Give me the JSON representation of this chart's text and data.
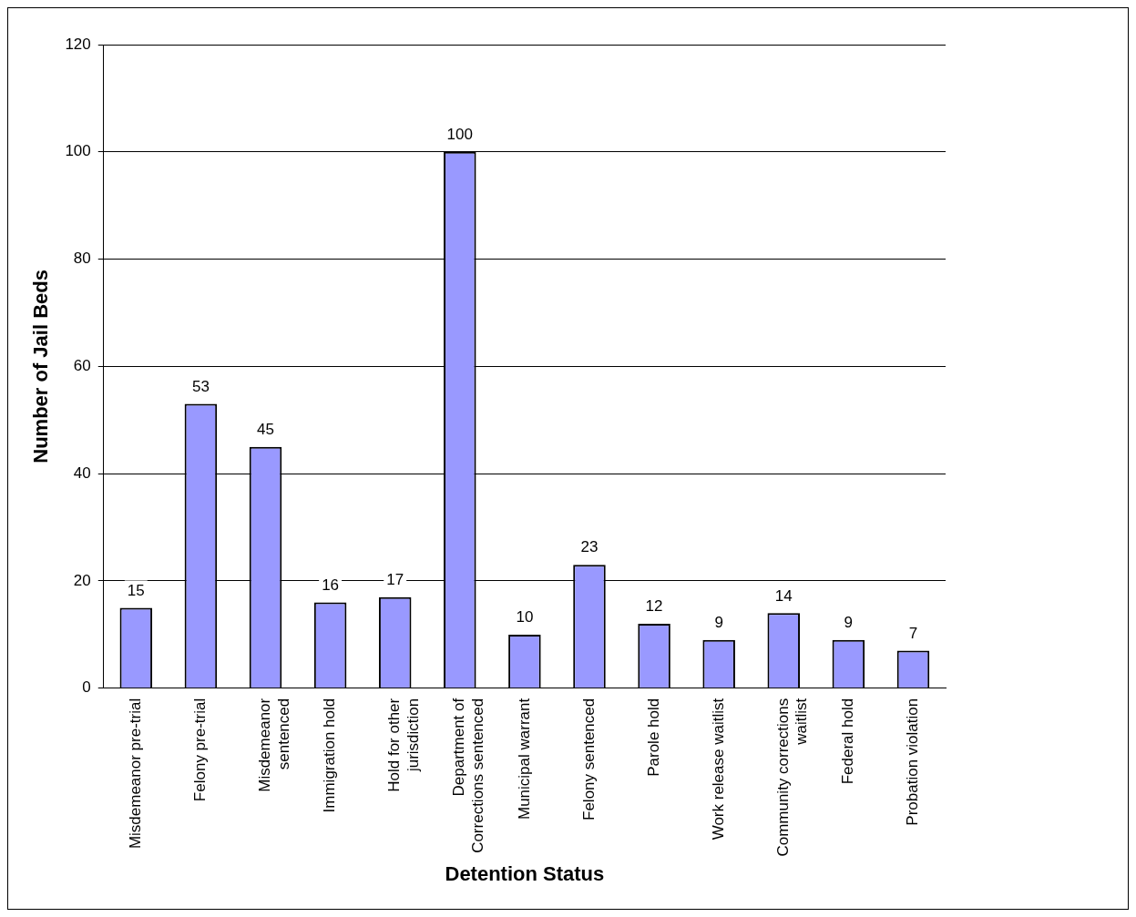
{
  "chart_data": {
    "type": "bar",
    "xlabel": "Detention Status",
    "ylabel": "Number of Jail Beds",
    "categories": [
      "Misdemeanor pre-trial",
      "Felony pre-trial",
      "Misdemeanor\nsentenced",
      "Immigration hold",
      "Hold for other\njurisdiction",
      "Department of\nCorrections sentenced",
      "Municipal warrant",
      "Felony sentenced",
      "Parole hold",
      "Work release waitlist",
      "Community corrections\nwaitlist",
      "Federal hold",
      "Probation violation"
    ],
    "values": [
      15,
      53,
      45,
      16,
      17,
      100,
      10,
      23,
      12,
      9,
      14,
      9,
      7
    ],
    "color": "#9999ff",
    "ylim": [
      0,
      120
    ],
    "yticks": [
      0,
      20,
      40,
      60,
      80,
      100,
      120
    ],
    "grid": "y",
    "data_labels": true,
    "legend": false
  }
}
